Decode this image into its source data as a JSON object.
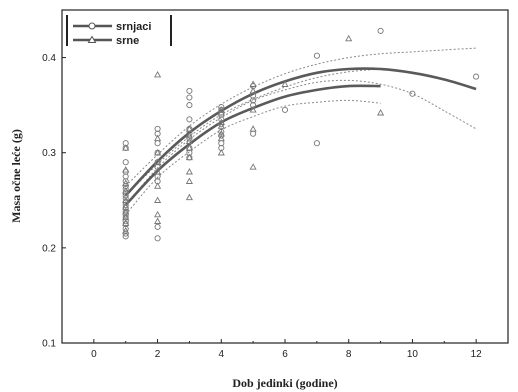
{
  "chart_data": {
    "type": "scatter",
    "xlabel": "Dob jedinki (godine)",
    "ylabel": "Masa očne leće (g)",
    "xlim": [
      -1,
      13
    ],
    "ylim": [
      0.1,
      0.45
    ],
    "xticks": [
      0,
      2,
      4,
      6,
      8,
      10,
      12
    ],
    "yticks": [
      0.1,
      0.2,
      0.3,
      0.4
    ],
    "legend_position": "top-left",
    "grid": false,
    "series": [
      {
        "name": "srnjaci",
        "marker": "circle",
        "points": [
          [
            1,
            0.31
          ],
          [
            1,
            0.305
          ],
          [
            1,
            0.29
          ],
          [
            1,
            0.28
          ],
          [
            1,
            0.275
          ],
          [
            1,
            0.27
          ],
          [
            1,
            0.265
          ],
          [
            1,
            0.262
          ],
          [
            1,
            0.258
          ],
          [
            1,
            0.255
          ],
          [
            1,
            0.252
          ],
          [
            1,
            0.248
          ],
          [
            1,
            0.245
          ],
          [
            1,
            0.242
          ],
          [
            1,
            0.238
          ],
          [
            1,
            0.235
          ],
          [
            1,
            0.232
          ],
          [
            1,
            0.228
          ],
          [
            1,
            0.225
          ],
          [
            1,
            0.22
          ],
          [
            1,
            0.215
          ],
          [
            1,
            0.212
          ],
          [
            2,
            0.325
          ],
          [
            2,
            0.32
          ],
          [
            2,
            0.31
          ],
          [
            2,
            0.3
          ],
          [
            2,
            0.29
          ],
          [
            2,
            0.285
          ],
          [
            2,
            0.275
          ],
          [
            2,
            0.27
          ],
          [
            2,
            0.222
          ],
          [
            2,
            0.21
          ],
          [
            3,
            0.365
          ],
          [
            3,
            0.358
          ],
          [
            3,
            0.35
          ],
          [
            3,
            0.335
          ],
          [
            3,
            0.325
          ],
          [
            3,
            0.32
          ],
          [
            3,
            0.315
          ],
          [
            3,
            0.305
          ],
          [
            3,
            0.3
          ],
          [
            3,
            0.295
          ],
          [
            4,
            0.348
          ],
          [
            4,
            0.345
          ],
          [
            4,
            0.34
          ],
          [
            4,
            0.335
          ],
          [
            4,
            0.33
          ],
          [
            4,
            0.322
          ],
          [
            4,
            0.318
          ],
          [
            4,
            0.31
          ],
          [
            4,
            0.305
          ],
          [
            5,
            0.37
          ],
          [
            5,
            0.36
          ],
          [
            5,
            0.355
          ],
          [
            5,
            0.35
          ],
          [
            5,
            0.32
          ],
          [
            6,
            0.345
          ],
          [
            7,
            0.402
          ],
          [
            7,
            0.31
          ],
          [
            9,
            0.428
          ],
          [
            10,
            0.362
          ],
          [
            12,
            0.38
          ]
        ]
      },
      {
        "name": "srne",
        "marker": "triangle",
        "points": [
          [
            1,
            0.305
          ],
          [
            1,
            0.282
          ],
          [
            1,
            0.268
          ],
          [
            1,
            0.26
          ],
          [
            1,
            0.25
          ],
          [
            1,
            0.243
          ],
          [
            1,
            0.238
          ],
          [
            1,
            0.232
          ],
          [
            1,
            0.226
          ],
          [
            1,
            0.218
          ],
          [
            2,
            0.382
          ],
          [
            2,
            0.315
          ],
          [
            2,
            0.3
          ],
          [
            2,
            0.29
          ],
          [
            2,
            0.28
          ],
          [
            2,
            0.265
          ],
          [
            2,
            0.25
          ],
          [
            2,
            0.235
          ],
          [
            2,
            0.228
          ],
          [
            3,
            0.325
          ],
          [
            3,
            0.318
          ],
          [
            3,
            0.312
          ],
          [
            3,
            0.305
          ],
          [
            3,
            0.295
          ],
          [
            3,
            0.28
          ],
          [
            3,
            0.27
          ],
          [
            3,
            0.253
          ],
          [
            4,
            0.345
          ],
          [
            4,
            0.342
          ],
          [
            4,
            0.332
          ],
          [
            4,
            0.328
          ],
          [
            4,
            0.32
          ],
          [
            4,
            0.315
          ],
          [
            4,
            0.3
          ],
          [
            5,
            0.372
          ],
          [
            5,
            0.365
          ],
          [
            5,
            0.345
          ],
          [
            5,
            0.325
          ],
          [
            5,
            0.285
          ],
          [
            6,
            0.372
          ],
          [
            8,
            0.42
          ],
          [
            9,
            0.342
          ]
        ]
      }
    ],
    "fit_lines": [
      {
        "name": "srnjaci",
        "x": [
          1,
          2,
          3,
          4,
          5,
          6,
          7,
          8,
          9,
          10,
          11,
          12
        ],
        "y": [
          0.255,
          0.291,
          0.321,
          0.344,
          0.362,
          0.375,
          0.384,
          0.388,
          0.388,
          0.384,
          0.377,
          0.367
        ],
        "ci_upper": [
          0.265,
          0.298,
          0.328,
          0.351,
          0.369,
          0.383,
          0.393,
          0.4,
          0.404,
          0.406,
          0.408,
          0.41
        ],
        "ci_lower": [
          0.245,
          0.284,
          0.314,
          0.337,
          0.355,
          0.366,
          0.374,
          0.376,
          0.372,
          0.362,
          0.344,
          0.325
        ]
      },
      {
        "name": "srne",
        "x": [
          1,
          2,
          3,
          4,
          5,
          6,
          7,
          8,
          9
        ],
        "y": [
          0.245,
          0.281,
          0.309,
          0.332,
          0.347,
          0.359,
          0.366,
          0.37,
          0.37
        ],
        "ci_upper": [
          0.255,
          0.288,
          0.317,
          0.34,
          0.356,
          0.369,
          0.379,
          0.385,
          0.388
        ],
        "ci_lower": [
          0.235,
          0.274,
          0.301,
          0.324,
          0.338,
          0.349,
          0.353,
          0.355,
          0.352
        ]
      }
    ]
  }
}
